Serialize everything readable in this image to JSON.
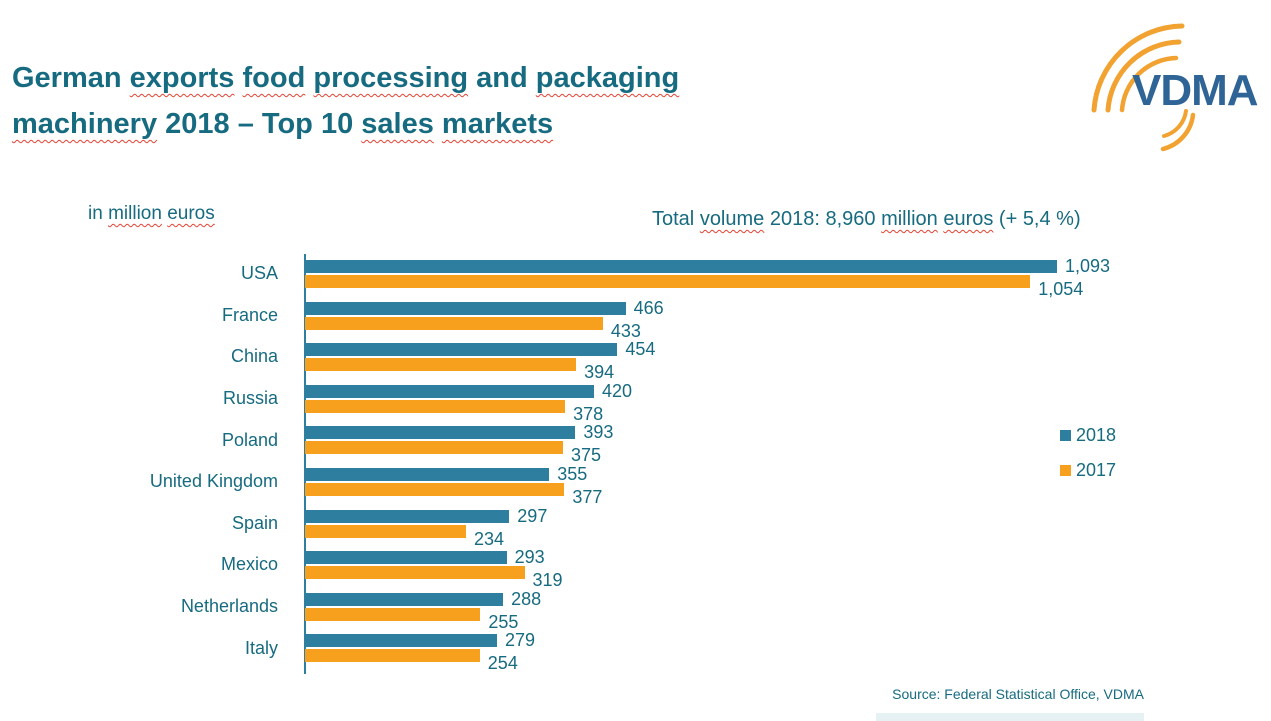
{
  "colors": {
    "teal_text": "#176B80",
    "bar_2018": "#2E7F9F",
    "bar_2017": "#F6A01E",
    "squiggle_red": "#E34234",
    "logo_blue": "#2E6596",
    "logo_orange": "#F2A230"
  },
  "header": {
    "title_line1": "German exports food processing and packaging",
    "title_line2": "machinery 2018 – Top 10 sales markets",
    "squiggle_words": [
      "exports",
      "food",
      "processing",
      "packaging",
      "machinery",
      "sales",
      "markets",
      "volume",
      "million",
      "euros"
    ]
  },
  "logo": {
    "text": "VDMA"
  },
  "chart": {
    "units_label": "in million euros",
    "total_label": "Total volume 2018: 8,960 million euros (+ 5,4 %)"
  },
  "chart_data": {
    "type": "bar",
    "orientation": "horizontal",
    "title": "German exports food processing and packaging machinery 2018 – Top 10 sales markets",
    "units": "million euros",
    "total_note": "Total volume 2018: 8,960 million euros (+ 5,4 %)",
    "categories": [
      "USA",
      "France",
      "China",
      "Russia",
      "Poland",
      "United Kingdom",
      "Spain",
      "Mexico",
      "Netherlands",
      "Italy"
    ],
    "series": [
      {
        "name": "2018",
        "color": "#2E7F9F",
        "values": [
          1093,
          466,
          454,
          420,
          393,
          355,
          297,
          293,
          288,
          279
        ]
      },
      {
        "name": "2017",
        "color": "#F6A01E",
        "values": [
          1054,
          433,
          394,
          378,
          375,
          377,
          234,
          319,
          255,
          254
        ]
      }
    ],
    "xlim": [
      0,
      1100
    ],
    "grid": false,
    "data_labels": true,
    "legend_position": "right"
  },
  "footer": {
    "source": "Source: Federal Statistical Office, VDMA"
  }
}
